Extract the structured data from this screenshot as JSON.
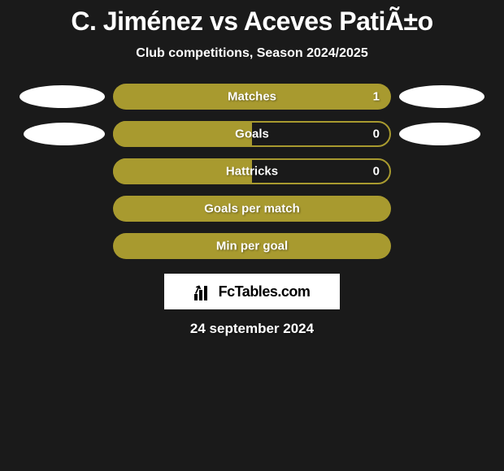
{
  "title": "C. Jiménez vs Aceves PatiÃ±o",
  "subtitle": "Club competitions, Season 2024/2025",
  "rows": [
    {
      "label": "Matches",
      "value": "1",
      "fill": "full",
      "left_shape": true,
      "right_shape": true,
      "shape_offset": "far"
    },
    {
      "label": "Goals",
      "value": "0",
      "fill": "half",
      "left_shape": true,
      "right_shape": true,
      "shape_offset": "near"
    },
    {
      "label": "Hattricks",
      "value": "0",
      "fill": "half",
      "left_shape": false,
      "right_shape": false
    },
    {
      "label": "Goals per match",
      "value": "",
      "fill": "full",
      "left_shape": false,
      "right_shape": false
    },
    {
      "label": "Min per goal",
      "value": "",
      "fill": "full",
      "left_shape": false,
      "right_shape": false
    }
  ],
  "logo_text": "FcTables.com",
  "date": "24 september 2024",
  "colors": {
    "bar_fill": "#a89a2f",
    "background": "#1a1a1a",
    "text": "#ffffff",
    "logo_bg": "#ffffff",
    "logo_text": "#000000"
  }
}
